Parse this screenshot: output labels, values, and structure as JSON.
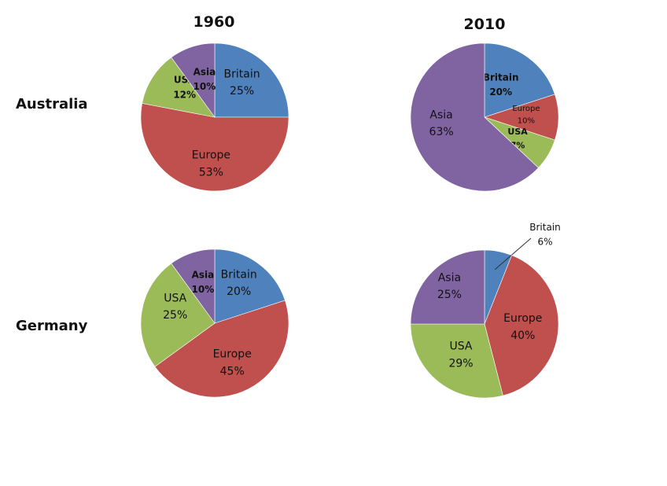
{
  "columns": [
    "1960",
    "2010"
  ],
  "rows": [
    "Australia",
    "Germany"
  ],
  "chart_data": [
    {
      "type": "pie",
      "row": "Australia",
      "column": "1960",
      "slices": [
        {
          "label": "Britain",
          "value": 25,
          "text": "25%",
          "color": "#4F81BD",
          "bold": false,
          "size": 14
        },
        {
          "label": "Europe",
          "value": 53,
          "text": "53%",
          "color": "#C0504D",
          "bold": false,
          "size": 14
        },
        {
          "label": "USA",
          "value": 12,
          "text": "12%",
          "color": "#9BBB59",
          "bold": true,
          "size": 12
        },
        {
          "label": "Asia",
          "value": 10,
          "text": "10%",
          "color": "#8064A2",
          "bold": true,
          "size": 12
        }
      ]
    },
    {
      "type": "pie",
      "row": "Australia",
      "column": "2010",
      "slices": [
        {
          "label": "Britain",
          "value": 20,
          "text": "20%",
          "color": "#4F81BD",
          "bold": true,
          "size": 12
        },
        {
          "label": "Europe",
          "value": 10,
          "text": "10%",
          "color": "#C0504D",
          "bold": false,
          "size": 10
        },
        {
          "label": "USA",
          "value": 7,
          "text": "7%",
          "color": "#9BBB59",
          "bold": true,
          "size": 11
        },
        {
          "label": "Asia",
          "value": 63,
          "text": "63%",
          "color": "#8064A2",
          "bold": false,
          "size": 14
        }
      ]
    },
    {
      "type": "pie",
      "row": "Germany",
      "column": "1960",
      "slices": [
        {
          "label": "Britain",
          "value": 20,
          "text": "20%",
          "color": "#4F81BD",
          "bold": false,
          "size": 14
        },
        {
          "label": "Europe",
          "value": 45,
          "text": "45%",
          "color": "#C0504D",
          "bold": false,
          "size": 14
        },
        {
          "label": "USA",
          "value": 25,
          "text": "25%",
          "color": "#9BBB59",
          "bold": false,
          "size": 14
        },
        {
          "label": "Asia",
          "value": 10,
          "text": "10%",
          "color": "#8064A2",
          "bold": true,
          "size": 12
        }
      ]
    },
    {
      "type": "pie",
      "row": "Germany",
      "column": "2010",
      "slices": [
        {
          "label": "Britain",
          "value": 6,
          "text": "6%",
          "color": "#4F81BD",
          "bold": false,
          "size": 12,
          "callout": true
        },
        {
          "label": "Europe",
          "value": 40,
          "text": "40%",
          "color": "#C0504D",
          "bold": false,
          "size": 14
        },
        {
          "label": "USA",
          "value": 29,
          "text": "29%",
          "color": "#9BBB59",
          "bold": false,
          "size": 14
        },
        {
          "label": "Asia",
          "value": 25,
          "text": "25%",
          "color": "#8064A2",
          "bold": false,
          "size": 14
        }
      ]
    }
  ]
}
